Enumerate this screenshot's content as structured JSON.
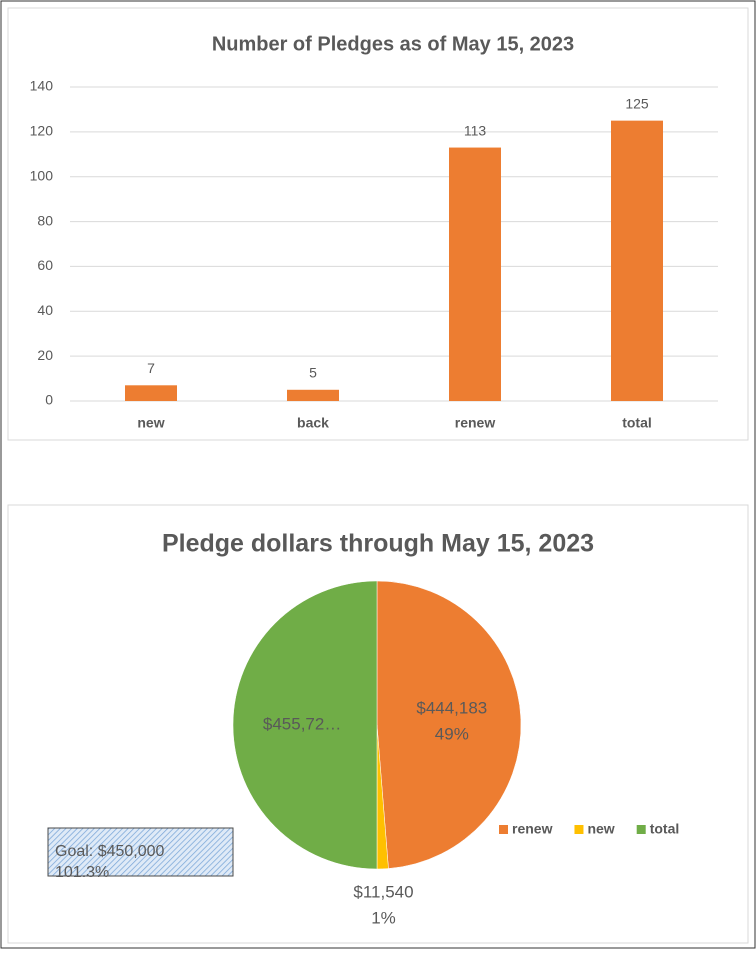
{
  "chart_data": [
    {
      "type": "bar",
      "title": "Number of Pledges as of May 15, 2023",
      "categories": [
        "new",
        "back",
        "renew",
        "total"
      ],
      "values": [
        7,
        5,
        113,
        125
      ],
      "color": "#ED7D31",
      "ylim": [
        0,
        140
      ],
      "yticks": [
        0,
        20,
        40,
        60,
        80,
        100,
        120,
        140
      ],
      "grid": true
    },
    {
      "type": "pie",
      "title": "Pledge dollars through May 15, 2023",
      "categories": [
        "renew",
        "new",
        "total"
      ],
      "values": [
        444183,
        11540,
        455723
      ],
      "value_labels": [
        [
          "$444,183",
          "49%"
        ],
        [
          "$11,540",
          "1%"
        ],
        [
          "$455,72…"
        ]
      ],
      "colors": [
        "#ED7D31",
        "#FFC000",
        "#70AD47"
      ],
      "legend": "bottom-right",
      "annotation": [
        "Goal: $450,000",
        "101.3%"
      ]
    }
  ]
}
